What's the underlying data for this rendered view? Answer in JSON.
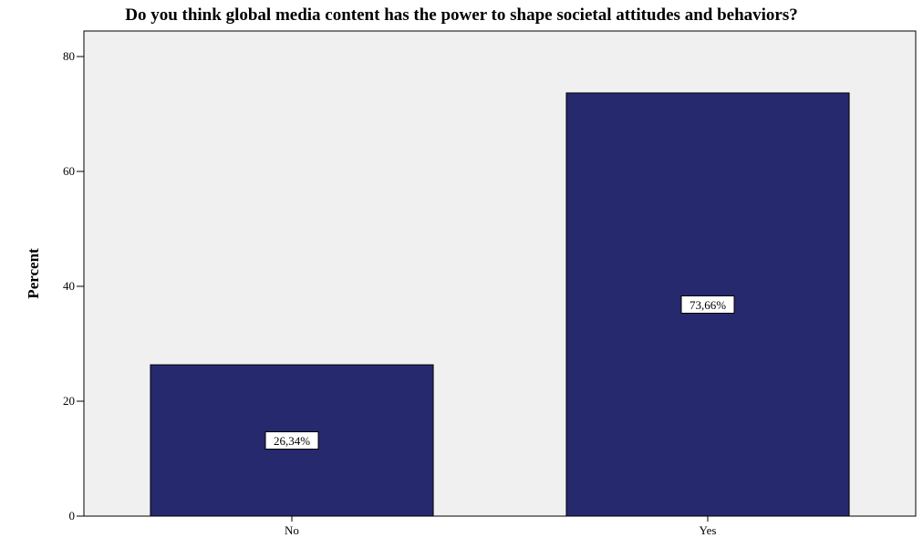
{
  "chart_data": {
    "type": "bar",
    "title": "Do you think global media content has the power to shape societal attitudes and behaviors?",
    "xlabel": "",
    "ylabel": "Percent",
    "categories": [
      "No",
      "Yes"
    ],
    "values": [
      26.34,
      73.66
    ],
    "data_labels": [
      "26,34%",
      "73,66%"
    ],
    "ylim": [
      0,
      80
    ],
    "yticks": [
      0,
      20,
      40,
      60,
      80
    ],
    "grid": false,
    "legend": "none",
    "colors": {
      "bar": "#26296e",
      "plot_background": "#f0f0f0",
      "label_box": "#ffffff"
    }
  }
}
